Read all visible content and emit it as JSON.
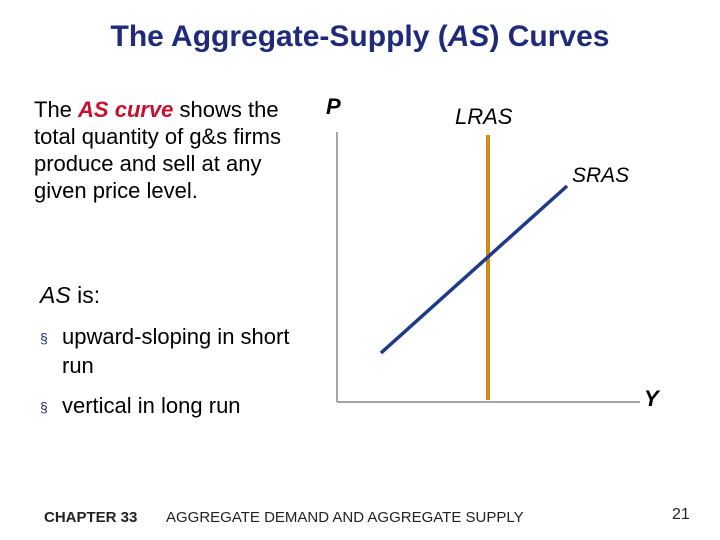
{
  "slide": {
    "title_prefix": "The Aggregate-Supply (",
    "title_em": "AS",
    "title_suffix": ") Curves"
  },
  "intro": {
    "pre": "The ",
    "highlight": "AS curve",
    "post": " shows the total quantity of g&s firms produce and sell at any given price level."
  },
  "as_is": {
    "em": "AS",
    "rest": " is:"
  },
  "bullets": [
    {
      "marker": "§",
      "text": "upward-sloping in short run"
    },
    {
      "marker": "§",
      "text": "vertical in long run"
    }
  ],
  "diagram": {
    "y_axis_label": "P",
    "x_axis_label": "Y",
    "curves": [
      {
        "name": "LRAS",
        "color": "#d08a14"
      },
      {
        "name": "SRAS",
        "color": "#1f3a8a"
      }
    ],
    "axis_color": "#888888"
  },
  "footer": {
    "chapter": "CHAPTER 33",
    "title": "AGGREGATE DEMAND AND AGGREGATE SUPPLY",
    "page": "21"
  }
}
